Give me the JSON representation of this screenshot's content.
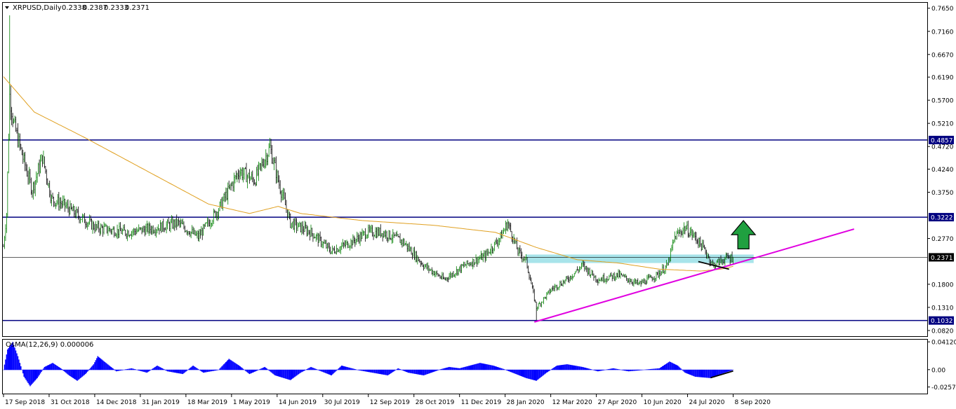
{
  "chart_data": {
    "type": "candlestick",
    "title": "XRPUSD,Daily",
    "ohlc": [
      "0.2338",
      "0.2387",
      "0.2333",
      "0.2371"
    ],
    "current_price": 0.2371,
    "ylim": [
      0.07,
      0.775
    ],
    "y_ticks": [
      0.765,
      0.716,
      0.667,
      0.619,
      0.57,
      0.521,
      0.472,
      0.424,
      0.375,
      0.277,
      0.18,
      0.131,
      0.082
    ],
    "x_ticks": [
      "17 Sep 2018",
      "31 Oct 2018",
      "14 Dec 2018",
      "31 Jan 2019",
      "18 Mar 2019",
      "1 May 2019",
      "14 Jun 2019",
      "30 Jul 2019",
      "12 Sep 2019",
      "28 Oct 2019",
      "11 Dec 2019",
      "28 Jan 2020",
      "12 Mar 2020",
      "27 Apr 2020",
      "10 Jun 2020",
      "24 Jul 2020",
      "8 Sep 2020"
    ],
    "horizontal_levels": [
      {
        "value": 0.4857,
        "label": "0.4857",
        "color": "#000080"
      },
      {
        "value": 0.3222,
        "label": "0.3222",
        "color": "#000080"
      },
      {
        "value": 0.1032,
        "label": "0.1032",
        "color": "#000080"
      }
    ],
    "price_anchors": [
      {
        "t": 0,
        "p": 0.26
      },
      {
        "t": 3,
        "p": 0.33
      },
      {
        "t": 6,
        "p": 0.58
      },
      {
        "t": 10,
        "p": 0.52
      },
      {
        "t": 20,
        "p": 0.44
      },
      {
        "t": 28,
        "p": 0.38
      },
      {
        "t": 38,
        "p": 0.45
      },
      {
        "t": 47,
        "p": 0.36
      },
      {
        "t": 58,
        "p": 0.35
      },
      {
        "t": 70,
        "p": 0.33
      },
      {
        "t": 90,
        "p": 0.3
      },
      {
        "t": 120,
        "p": 0.29
      },
      {
        "t": 150,
        "p": 0.3
      },
      {
        "t": 170,
        "p": 0.31
      },
      {
        "t": 190,
        "p": 0.28
      },
      {
        "t": 210,
        "p": 0.34
      },
      {
        "t": 230,
        "p": 0.42
      },
      {
        "t": 245,
        "p": 0.4
      },
      {
        "t": 260,
        "p": 0.47
      },
      {
        "t": 268,
        "p": 0.4
      },
      {
        "t": 280,
        "p": 0.31
      },
      {
        "t": 300,
        "p": 0.29
      },
      {
        "t": 320,
        "p": 0.25
      },
      {
        "t": 340,
        "p": 0.27
      },
      {
        "t": 355,
        "p": 0.29
      },
      {
        "t": 370,
        "p": 0.29
      },
      {
        "t": 390,
        "p": 0.27
      },
      {
        "t": 410,
        "p": 0.22
      },
      {
        "t": 430,
        "p": 0.19
      },
      {
        "t": 450,
        "p": 0.22
      },
      {
        "t": 470,
        "p": 0.24
      },
      {
        "t": 485,
        "p": 0.28
      },
      {
        "t": 492,
        "p": 0.31
      },
      {
        "t": 502,
        "p": 0.25
      },
      {
        "t": 510,
        "p": 0.23
      },
      {
        "t": 515,
        "p": 0.18
      },
      {
        "t": 520,
        "p": 0.13
      },
      {
        "t": 535,
        "p": 0.17
      },
      {
        "t": 550,
        "p": 0.19
      },
      {
        "t": 565,
        "p": 0.22
      },
      {
        "t": 580,
        "p": 0.19
      },
      {
        "t": 600,
        "p": 0.2
      },
      {
        "t": 620,
        "p": 0.18
      },
      {
        "t": 638,
        "p": 0.2
      },
      {
        "t": 648,
        "p": 0.22
      },
      {
        "t": 655,
        "p": 0.28
      },
      {
        "t": 665,
        "p": 0.3
      },
      {
        "t": 675,
        "p": 0.28
      },
      {
        "t": 685,
        "p": 0.25
      },
      {
        "t": 692,
        "p": 0.22
      },
      {
        "t": 705,
        "p": 0.235
      },
      {
        "t": 712,
        "p": 0.2371
      }
    ],
    "moving_average": [
      {
        "t": 0,
        "p": 0.62
      },
      {
        "t": 30,
        "p": 0.545
      },
      {
        "t": 80,
        "p": 0.49
      },
      {
        "t": 140,
        "p": 0.42
      },
      {
        "t": 200,
        "p": 0.35
      },
      {
        "t": 240,
        "p": 0.33
      },
      {
        "t": 268,
        "p": 0.345
      },
      {
        "t": 290,
        "p": 0.33
      },
      {
        "t": 350,
        "p": 0.315
      },
      {
        "t": 420,
        "p": 0.305
      },
      {
        "t": 480,
        "p": 0.29
      },
      {
        "t": 520,
        "p": 0.258
      },
      {
        "t": 560,
        "p": 0.232
      },
      {
        "t": 600,
        "p": 0.225
      },
      {
        "t": 640,
        "p": 0.212
      },
      {
        "t": 680,
        "p": 0.208
      },
      {
        "t": 700,
        "p": 0.212
      },
      {
        "t": 712,
        "p": 0.218
      }
    ],
    "trendline": {
      "t1": 518,
      "p1": 0.1,
      "t2": 830,
      "p2": 0.297,
      "color": "#e000e0"
    },
    "zone": {
      "t1": 510,
      "t2": 732,
      "p1": 0.225,
      "p2": 0.243,
      "color": "#a8e4ea"
    },
    "divergence_price": {
      "t1": 678,
      "p1": 0.228,
      "t2": 708,
      "p2": 0.212
    },
    "arrow": {
      "t": 722,
      "base": 0.255,
      "tip": 0.315,
      "color": "#20a040"
    },
    "osma": {
      "label": "OsMA(12,26,9) 0.000006",
      "y_ticks": [
        "0.041203",
        "0.00",
        "-0.025728"
      ],
      "ylim": [
        -0.0355,
        0.0434
      ],
      "anchors": [
        {
          "t": 0,
          "v": 0.0
        },
        {
          "t": 4,
          "v": 0.03
        },
        {
          "t": 9,
          "v": 0.041
        },
        {
          "t": 14,
          "v": 0.02
        },
        {
          "t": 20,
          "v": -0.01
        },
        {
          "t": 26,
          "v": -0.024
        },
        {
          "t": 33,
          "v": -0.012
        },
        {
          "t": 40,
          "v": 0.004
        },
        {
          "t": 48,
          "v": 0.01
        },
        {
          "t": 56,
          "v": 0.002
        },
        {
          "t": 64,
          "v": -0.008
        },
        {
          "t": 72,
          "v": -0.016
        },
        {
          "t": 80,
          "v": -0.006
        },
        {
          "t": 88,
          "v": 0.008
        },
        {
          "t": 92,
          "v": 0.02
        },
        {
          "t": 100,
          "v": 0.01
        },
        {
          "t": 110,
          "v": -0.002
        },
        {
          "t": 125,
          "v": 0.002
        },
        {
          "t": 140,
          "v": -0.004
        },
        {
          "t": 150,
          "v": 0.006
        },
        {
          "t": 160,
          "v": -0.002
        },
        {
          "t": 175,
          "v": -0.006
        },
        {
          "t": 185,
          "v": 0.006
        },
        {
          "t": 195,
          "v": -0.004
        },
        {
          "t": 210,
          "v": 0.0
        },
        {
          "t": 220,
          "v": 0.016
        },
        {
          "t": 230,
          "v": 0.006
        },
        {
          "t": 240,
          "v": -0.006
        },
        {
          "t": 255,
          "v": 0.004
        },
        {
          "t": 265,
          "v": -0.008
        },
        {
          "t": 280,
          "v": -0.015
        },
        {
          "t": 290,
          "v": -0.004
        },
        {
          "t": 300,
          "v": 0.004
        },
        {
          "t": 310,
          "v": -0.002
        },
        {
          "t": 320,
          "v": -0.008
        },
        {
          "t": 330,
          "v": 0.006
        },
        {
          "t": 345,
          "v": 0.0
        },
        {
          "t": 360,
          "v": -0.004
        },
        {
          "t": 375,
          "v": -0.008
        },
        {
          "t": 385,
          "v": 0.002
        },
        {
          "t": 395,
          "v": -0.004
        },
        {
          "t": 410,
          "v": -0.008
        },
        {
          "t": 425,
          "v": 0.0
        },
        {
          "t": 435,
          "v": 0.004
        },
        {
          "t": 445,
          "v": 0.002
        },
        {
          "t": 455,
          "v": 0.006
        },
        {
          "t": 465,
          "v": 0.01
        },
        {
          "t": 478,
          "v": 0.006
        },
        {
          "t": 490,
          "v": 0.0
        },
        {
          "t": 500,
          "v": -0.006
        },
        {
          "t": 510,
          "v": -0.012
        },
        {
          "t": 520,
          "v": -0.016
        },
        {
          "t": 530,
          "v": -0.004
        },
        {
          "t": 540,
          "v": 0.006
        },
        {
          "t": 550,
          "v": 0.008
        },
        {
          "t": 565,
          "v": 0.004
        },
        {
          "t": 580,
          "v": -0.002
        },
        {
          "t": 595,
          "v": 0.002
        },
        {
          "t": 610,
          "v": -0.002
        },
        {
          "t": 625,
          "v": 0.0
        },
        {
          "t": 640,
          "v": 0.002
        },
        {
          "t": 650,
          "v": 0.012
        },
        {
          "t": 658,
          "v": 0.006
        },
        {
          "t": 665,
          "v": -0.004
        },
        {
          "t": 675,
          "v": -0.01
        },
        {
          "t": 690,
          "v": -0.012
        },
        {
          "t": 700,
          "v": -0.006
        },
        {
          "t": 712,
          "v": 0.0
        }
      ],
      "divergence": {
        "t1": 690,
        "v1": -0.012,
        "t2": 712,
        "v2": -0.002
      }
    },
    "grid": false,
    "legend": "none"
  }
}
